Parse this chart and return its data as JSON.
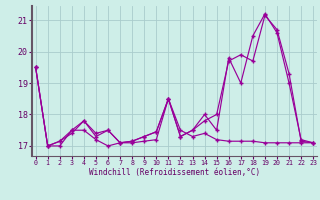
{
  "xlabel": "Windchill (Refroidissement éolien,°C)",
  "bg_color": "#ceeee8",
  "grid_color": "#aacccc",
  "line_color": "#990099",
  "spine_color": "#665566",
  "tick_color": "#660066",
  "x_ticks": [
    0,
    1,
    2,
    3,
    4,
    5,
    6,
    7,
    8,
    9,
    10,
    11,
    12,
    13,
    14,
    15,
    16,
    17,
    18,
    19,
    20,
    21,
    22,
    23
  ],
  "y_ticks": [
    17,
    18,
    19,
    20,
    21
  ],
  "ylim": [
    16.68,
    21.45
  ],
  "xlim": [
    -0.3,
    23.3
  ],
  "series1": [
    19.5,
    17.0,
    17.0,
    17.5,
    17.5,
    17.2,
    17.0,
    17.1,
    17.1,
    17.15,
    17.2,
    18.5,
    17.5,
    17.3,
    17.4,
    17.2,
    17.15,
    17.15,
    17.15,
    17.1,
    17.1,
    17.1,
    17.1,
    17.1
  ],
  "series2": [
    19.5,
    17.0,
    17.15,
    17.5,
    17.8,
    17.4,
    17.5,
    17.1,
    17.15,
    17.3,
    17.45,
    18.5,
    17.3,
    17.5,
    17.8,
    18.0,
    19.7,
    19.9,
    19.7,
    21.15,
    20.7,
    19.3,
    17.15,
    17.1
  ],
  "series3": [
    19.5,
    17.0,
    17.15,
    17.4,
    17.8,
    17.3,
    17.5,
    17.1,
    17.15,
    17.3,
    17.45,
    18.5,
    17.3,
    17.5,
    18.0,
    17.5,
    19.8,
    19.0,
    20.5,
    21.2,
    20.6,
    19.0,
    17.2,
    17.1
  ]
}
